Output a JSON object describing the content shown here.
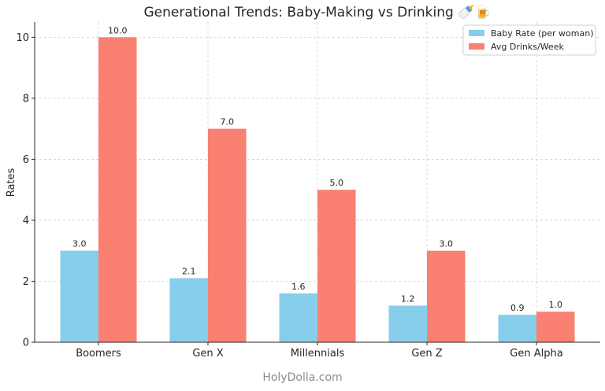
{
  "chart_data": {
    "type": "bar",
    "title": "Generational Trends: Baby-Making vs Drinking 🍼🍺",
    "xlabel": "",
    "ylabel": "Rates",
    "categories": [
      "Boomers",
      "Gen X",
      "Millennials",
      "Gen Z",
      "Gen Alpha"
    ],
    "series": [
      {
        "name": "Baby Rate (per woman)",
        "values": [
          3.0,
          2.1,
          1.6,
          1.2,
          0.9
        ],
        "color": "#87ceeb"
      },
      {
        "name": "Avg Drinks/Week",
        "values": [
          10.0,
          7.0,
          5.0,
          3.0,
          1.0
        ],
        "color": "#fa8072"
      }
    ],
    "ylim": [
      0,
      10.5
    ],
    "yticks": [
      0,
      2,
      4,
      6,
      8,
      10
    ],
    "grid": true,
    "legend": "top-right"
  },
  "watermark": "HolyDolla.com"
}
